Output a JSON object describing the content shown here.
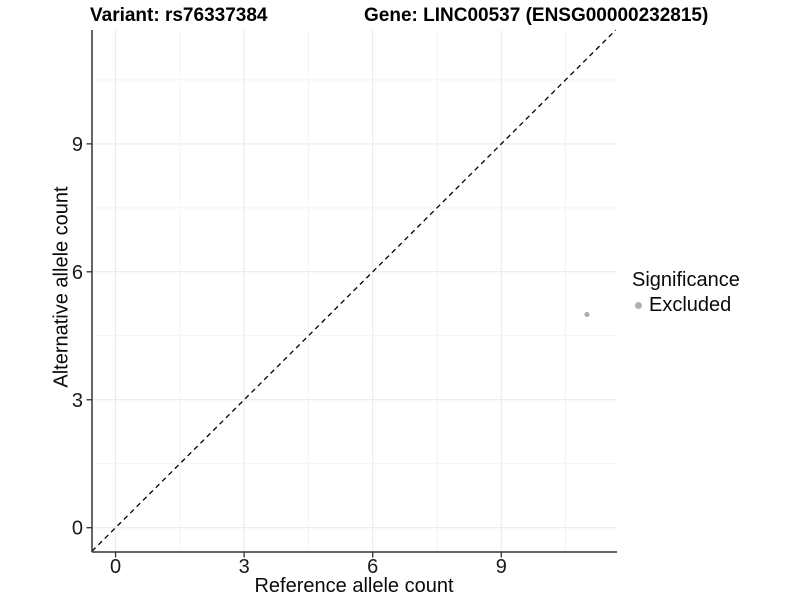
{
  "chart_data": {
    "type": "scatter",
    "title_left": "Variant: rs76337384",
    "title_right": "Gene: LINC00537 (ENSG00000232815)",
    "xlabel": "Reference allele count",
    "ylabel": "Alternative allele count",
    "xlim": [
      -0.55,
      11.7
    ],
    "ylim": [
      -0.57,
      11.67
    ],
    "x_ticks": [
      0,
      3,
      6,
      9
    ],
    "y_ticks": [
      0,
      3,
      6,
      9
    ],
    "minor_breaks": [
      1.5,
      4.5,
      7.5,
      10.5
    ],
    "grid": true,
    "points": [
      {
        "x": 11,
        "y": 5,
        "significance": "Excluded"
      }
    ],
    "identity_line": {
      "type": "y=x",
      "style": "dashed",
      "color": "#000000"
    },
    "legend": {
      "title": "Significance",
      "position": "right",
      "entries": [
        {
          "label": "Excluded",
          "color": "#b0b0b0"
        }
      ]
    },
    "colors": {
      "point": "#b0b0b0",
      "axis_line": "#333333",
      "tick_label": "#1a1a1a",
      "grid_major": "#e9e9e9",
      "grid_minor": "#f3f3f3",
      "background": "#ffffff"
    }
  }
}
